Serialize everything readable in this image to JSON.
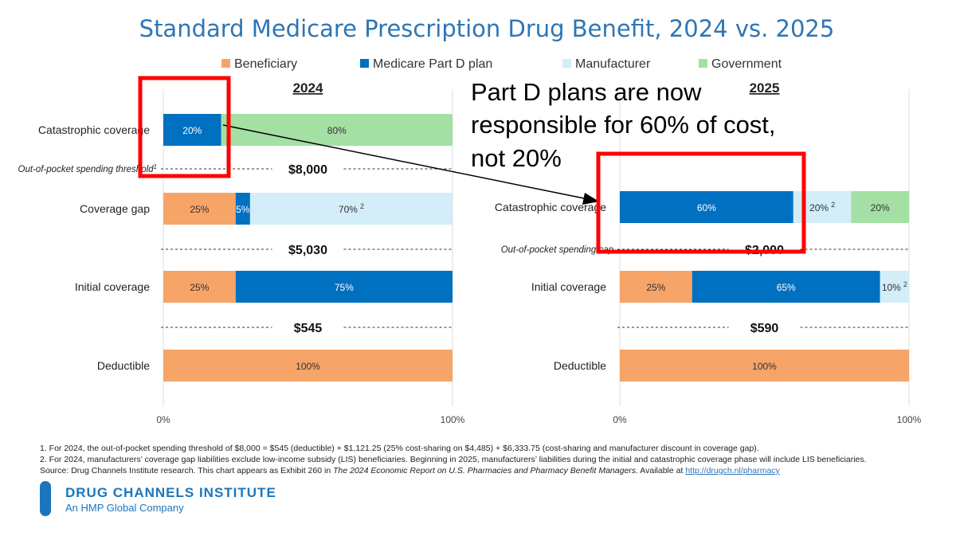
{
  "title": "Standard Medicare Prescription Drug Benefit, 2024 vs. 2025",
  "colors": {
    "title": "#2E75B6",
    "beneficiary": "#F7A468",
    "plan": "#0070C0",
    "manufacturer": "#D3EDF9",
    "government": "#A4DFA4",
    "callout": "#FF0000"
  },
  "legend": [
    {
      "name": "Beneficiary",
      "key": "beneficiary"
    },
    {
      "name": "Medicare Part D plan",
      "key": "plan"
    },
    {
      "name": "Manufacturer",
      "key": "manufacturer"
    },
    {
      "name": "Government",
      "key": "government"
    }
  ],
  "callout": {
    "lines": [
      "Part D plans are now",
      "responsible for 60% of cost,",
      "not 20%"
    ]
  },
  "chart_data": [
    {
      "type": "bar",
      "stacked": "horizontal-100%",
      "title": "2024",
      "xlim": [
        0,
        100
      ],
      "x_ticks": [
        "0%",
        "100%"
      ],
      "categories": [
        "Catastrophic coverage",
        "Coverage gap",
        "Initial coverage",
        "Deductible"
      ],
      "rows": [
        {
          "segments": [
            {
              "key": "plan",
              "value": 20,
              "label": "20%"
            },
            {
              "key": "government",
              "value": 80,
              "label": "80%"
            }
          ]
        },
        {
          "segments": [
            {
              "key": "beneficiary",
              "value": 25,
              "label": "25%"
            },
            {
              "key": "plan",
              "value": 5,
              "label": "5%"
            },
            {
              "key": "manufacturer",
              "value": 70,
              "label": "70%",
              "sup": "2"
            }
          ]
        },
        {
          "segments": [
            {
              "key": "beneficiary",
              "value": 25,
              "label": "25%"
            },
            {
              "key": "plan",
              "value": 75,
              "label": "75%"
            }
          ]
        },
        {
          "segments": [
            {
              "key": "beneficiary",
              "value": 100,
              "label": "100%"
            }
          ]
        }
      ],
      "thresholds": [
        {
          "name": "Out-of-pocket spending threshold",
          "sup": "1",
          "value": "$8,000"
        },
        {
          "name": "",
          "value": "$5,030"
        },
        {
          "name": "",
          "value": "$545"
        }
      ]
    },
    {
      "type": "bar",
      "stacked": "horizontal-100%",
      "title": "2025",
      "xlim": [
        0,
        100
      ],
      "x_ticks": [
        "0%",
        "100%"
      ],
      "categories": [
        "Catastrophic coverage",
        "Initial coverage",
        "Deductible"
      ],
      "rows": [
        {
          "segments": [
            {
              "key": "plan",
              "value": 60,
              "label": "60%"
            },
            {
              "key": "manufacturer",
              "value": 20,
              "label": "20%",
              "sup": "2"
            },
            {
              "key": "government",
              "value": 20,
              "label": "20%"
            }
          ]
        },
        {
          "segments": [
            {
              "key": "beneficiary",
              "value": 25,
              "label": "25%"
            },
            {
              "key": "plan",
              "value": 65,
              "label": "65%"
            },
            {
              "key": "manufacturer",
              "value": 10,
              "label": "10%",
              "sup": "2"
            }
          ]
        },
        {
          "segments": [
            {
              "key": "beneficiary",
              "value": 100,
              "label": "100%"
            }
          ]
        }
      ],
      "thresholds": [
        {
          "name": "Out-of-pocket spending cap",
          "value": "$2,000"
        },
        {
          "name": "",
          "value": "$590"
        }
      ]
    }
  ],
  "footnotes": [
    "1. For 2024, the out-of-pocket spending threshold of $8,000 = $545 (deductible) + $1,121.25 (25% cost-sharing on $4,485) + $6,333.75 (cost-sharing and manufacturer discount in coverage gap).",
    "2. For 2024, manufacturers’ coverage gap liabilities exclude low-income subsidy (LIS) beneficiaries. Beginning in 2025, manufacturers’ liabilities during the initial and catastrophic coverage phase will include LIS beneficiaries."
  ],
  "source": {
    "prefix": "Source: Drug Channels Institute research. This chart appears as Exhibit 260 in ",
    "book": "The 2024 Economic Report on U.S. Pharmacies and Pharmacy Benefit Managers",
    "middle": ". Available at ",
    "link": "http://drugch.nl/pharmacy"
  },
  "logo": {
    "name": "DRUG CHANNELS INSTITUTE",
    "tagline": "An HMP Global Company"
  }
}
